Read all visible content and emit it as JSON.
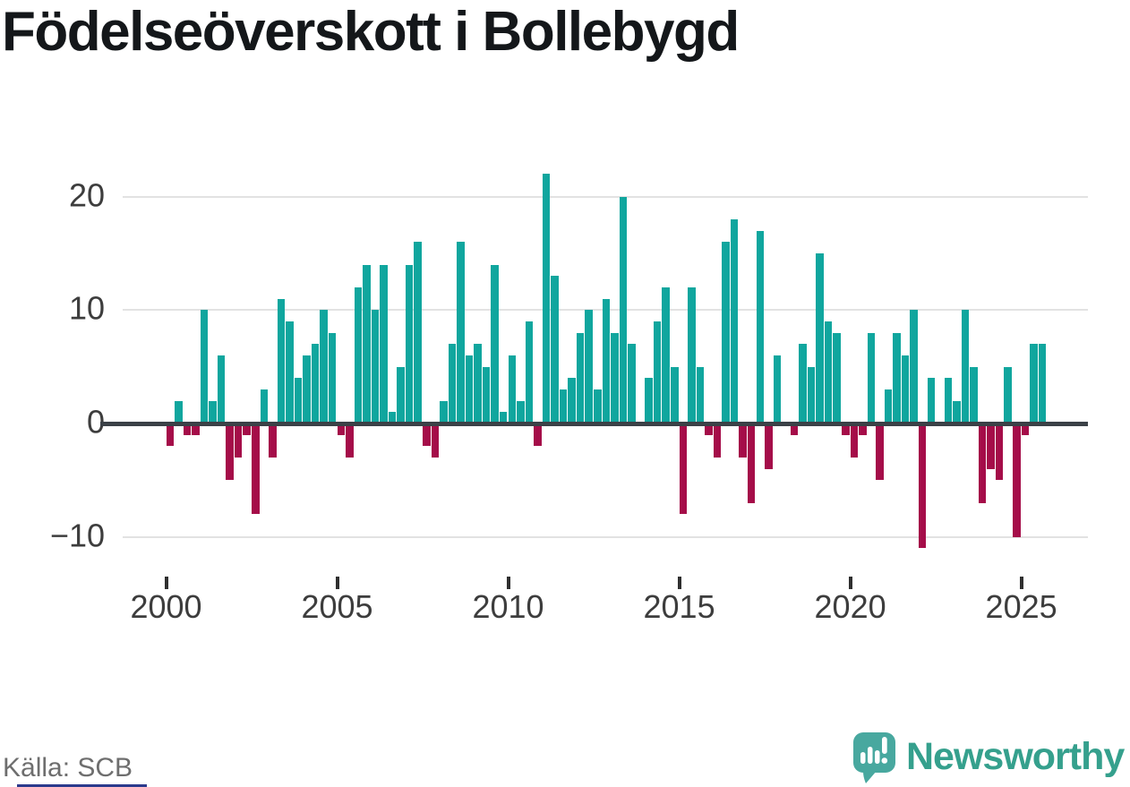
{
  "title": "Födelseöverskott i Bollebygd",
  "source": "Källa: SCB",
  "brand": {
    "name": "Newsworthy"
  },
  "colors": {
    "positive": "#10a69e",
    "negative": "#a50d49",
    "axis": "#3b4147",
    "gridline": "#e2e2e2",
    "tick_label": "#3d3d3d",
    "title_text": "#14171a",
    "source_text": "#6e6e6e",
    "brand_bubble": "#48a89f",
    "brand_wordmark": "#35a08d",
    "footer_accent": "#2b3a8c"
  },
  "chart_data": {
    "type": "bar",
    "title": "Födelseöverskott i Bollebygd",
    "xlabel": "",
    "ylabel": "",
    "frequency": "quarterly",
    "start": "2000-Q1",
    "end": "2025-Q3",
    "grid": "horizontal",
    "ylim": [
      -13,
      24
    ],
    "y_ticks": [
      20,
      10,
      0,
      -10
    ],
    "y_tick_labels": [
      "20",
      "10",
      "0",
      "−10"
    ],
    "x_ticks": [
      2000,
      2005,
      2010,
      2015,
      2020,
      2025
    ],
    "x_tick_labels": [
      "2000",
      "2005",
      "2010",
      "2015",
      "2020",
      "2025"
    ],
    "positive_color": "#10a69e",
    "negative_color": "#a50d49",
    "quarterly_values_by_year": {
      "2000": [
        -2,
        2,
        -1,
        -1
      ],
      "2001": [
        10,
        2,
        6,
        -5
      ],
      "2002": [
        -3,
        -1,
        -8,
        3
      ],
      "2003": [
        -3,
        11,
        9,
        4
      ],
      "2004": [
        6,
        7,
        10,
        8
      ],
      "2005": [
        -1,
        -3,
        12,
        14
      ],
      "2006": [
        10,
        14,
        1,
        5
      ],
      "2007": [
        14,
        16,
        -2,
        -3
      ],
      "2008": [
        2,
        7,
        16,
        6
      ],
      "2009": [
        7,
        5,
        14,
        1
      ],
      "2010": [
        6,
        2,
        9,
        -2
      ],
      "2011": [
        22,
        13,
        3,
        4
      ],
      "2012": [
        8,
        10,
        3,
        11
      ],
      "2013": [
        8,
        20,
        7,
        0
      ],
      "2014": [
        4,
        9,
        12,
        5
      ],
      "2015": [
        -8,
        12,
        5,
        -1
      ],
      "2016": [
        -3,
        16,
        18,
        -3
      ],
      "2017": [
        -7,
        17,
        -4,
        6
      ],
      "2018": [
        0,
        -1,
        7,
        5
      ],
      "2019": [
        15,
        9,
        8,
        -1
      ],
      "2020": [
        -3,
        -1,
        8,
        -5
      ],
      "2021": [
        3,
        8,
        6,
        10
      ],
      "2022": [
        -11,
        4,
        0,
        4
      ],
      "2023": [
        2,
        10,
        5,
        -7
      ],
      "2024": [
        -4,
        -5,
        5,
        -10
      ],
      "2025": [
        -1,
        7,
        7
      ]
    }
  }
}
